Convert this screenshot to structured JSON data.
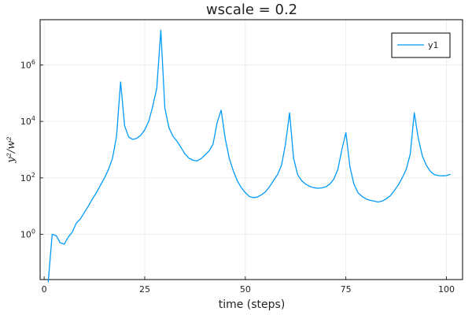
{
  "chart_data": {
    "type": "line",
    "title": "wscale = 0.2",
    "xlabel": "time (steps)",
    "ylabel": "y²/w²",
    "xlim": [
      -1,
      104
    ],
    "ylim_log10": [
      -1.6,
      7.6
    ],
    "y_scale": "log10",
    "grid": true,
    "legend_position": "top-right",
    "x_ticks": [
      {
        "value": 0,
        "label": "0"
      },
      {
        "value": 25,
        "label": "25"
      },
      {
        "value": 50,
        "label": "50"
      },
      {
        "value": 75,
        "label": "75"
      },
      {
        "value": 100,
        "label": "100"
      }
    ],
    "y_ticks": [
      {
        "exp": 0,
        "base": "10",
        "sup": "0"
      },
      {
        "exp": 2,
        "base": "10",
        "sup": "2"
      },
      {
        "exp": 4,
        "base": "10",
        "sup": "4"
      },
      {
        "exp": 6,
        "base": "10",
        "sup": "6"
      }
    ],
    "series": [
      {
        "name": "y1",
        "color": "#009af9",
        "x": [
          1,
          2,
          3,
          4,
          5,
          6,
          7,
          8,
          9,
          10,
          11,
          12,
          13,
          14,
          15,
          16,
          17,
          18,
          19,
          20,
          21,
          22,
          23,
          24,
          25,
          26,
          27,
          28,
          29,
          30,
          31,
          32,
          33,
          34,
          35,
          36,
          37,
          38,
          39,
          40,
          41,
          42,
          43,
          44,
          45,
          46,
          47,
          48,
          49,
          50,
          51,
          52,
          53,
          54,
          55,
          56,
          57,
          58,
          59,
          60,
          61,
          62,
          63,
          64,
          65,
          66,
          67,
          68,
          69,
          70,
          71,
          72,
          73,
          74,
          75,
          76,
          77,
          78,
          79,
          80,
          81,
          82,
          83,
          84,
          85,
          86,
          87,
          88,
          89,
          90,
          91,
          92,
          93,
          94,
          95,
          96,
          97,
          98,
          99,
          100,
          101
        ],
        "y": [
          0.02,
          1.0,
          0.9,
          0.5,
          0.45,
          0.8,
          1.2,
          2.5,
          3.5,
          6,
          10,
          18,
          30,
          55,
          100,
          200,
          500,
          3000,
          250000,
          7000,
          2800,
          2300,
          2500,
          3200,
          5000,
          10000,
          35000,
          150000,
          17000000,
          30000,
          6000,
          3000,
          2000,
          1200,
          700,
          500,
          420,
          400,
          480,
          650,
          900,
          1600,
          9000,
          25000,
          2500,
          500,
          180,
          80,
          45,
          30,
          22,
          20,
          21,
          25,
          32,
          48,
          80,
          130,
          280,
          1600,
          20000,
          500,
          130,
          80,
          60,
          50,
          45,
          43,
          44,
          48,
          60,
          90,
          200,
          1000,
          4000,
          250,
          60,
          30,
          22,
          18,
          16,
          15,
          14,
          15,
          18,
          23,
          35,
          55,
          100,
          200,
          700,
          20000,
          2500,
          600,
          280,
          170,
          130,
          120,
          118,
          120,
          135
        ]
      }
    ]
  }
}
